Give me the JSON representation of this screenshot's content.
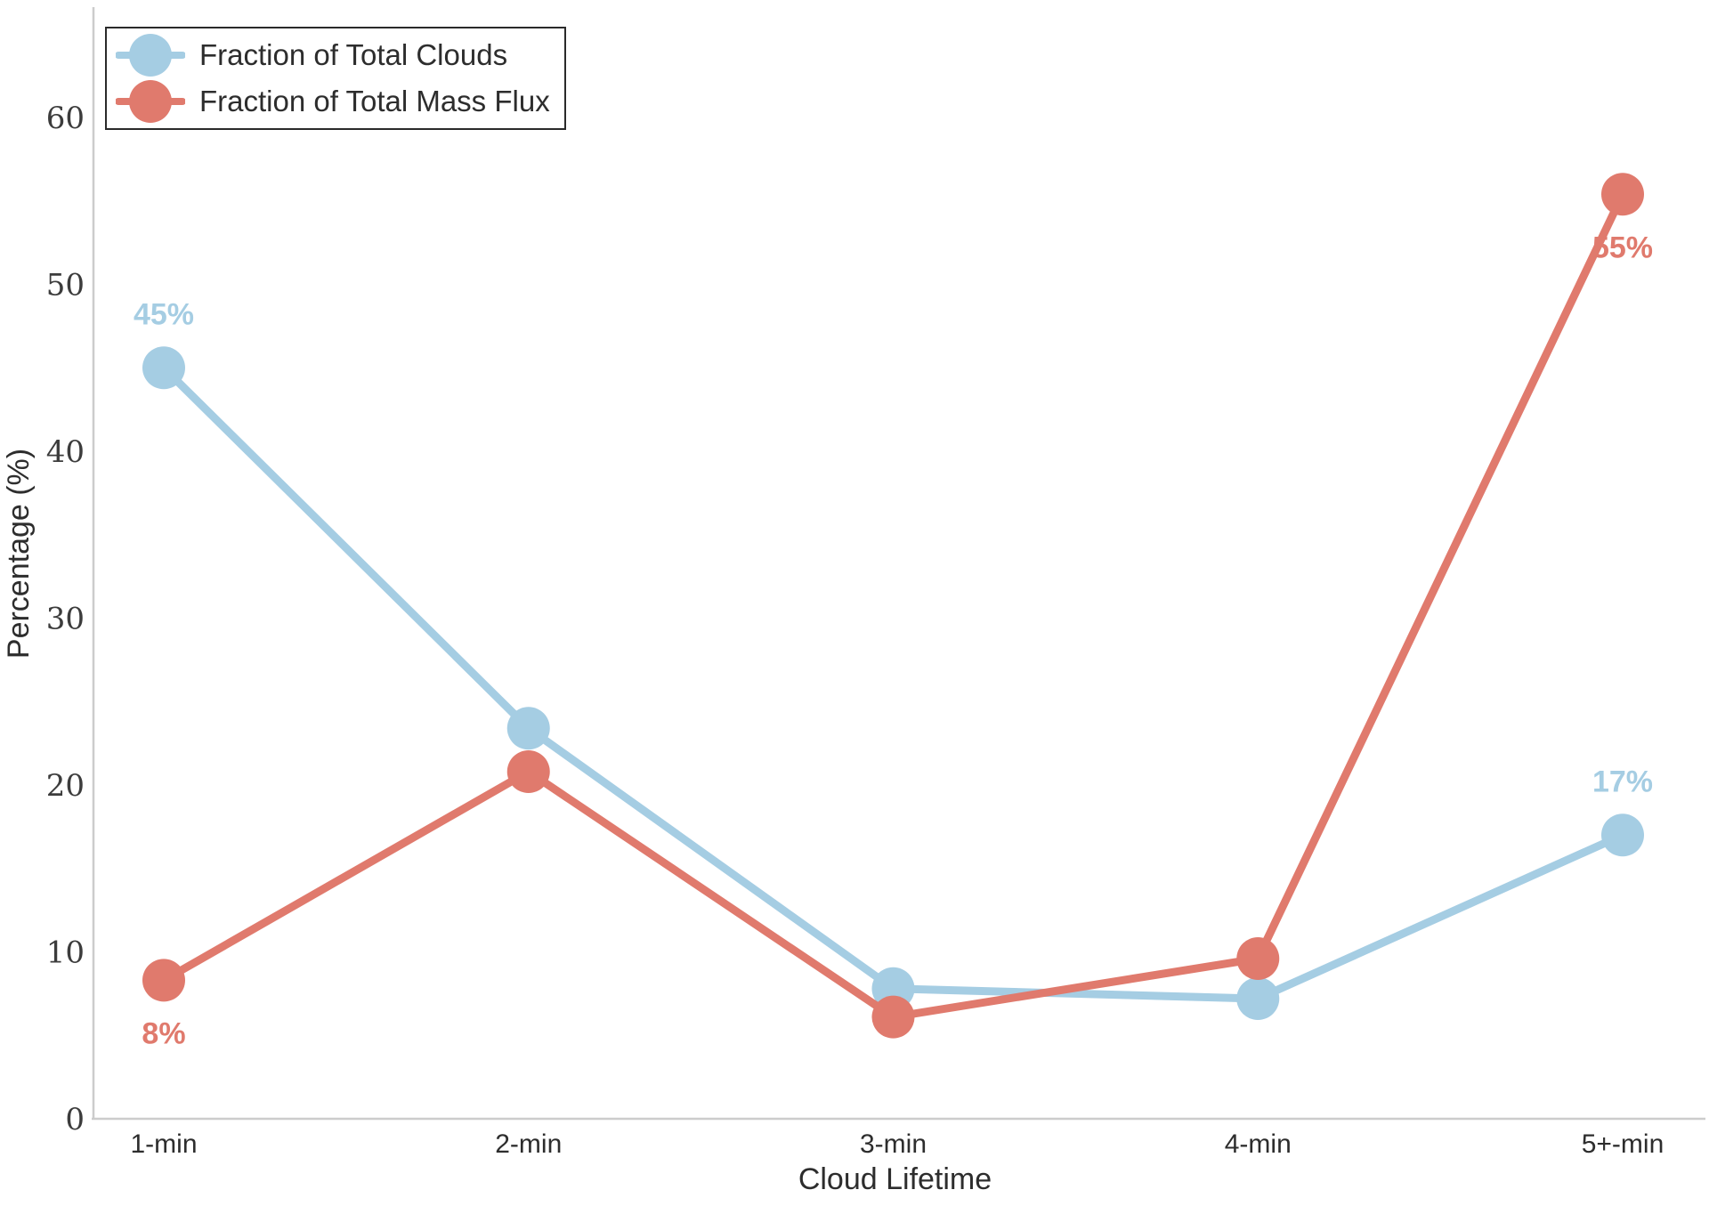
{
  "chart_data": {
    "type": "line",
    "title": "",
    "xlabel": "Cloud Lifetime",
    "ylabel": "Percentage (%)",
    "categories": [
      "1-min",
      "2-min",
      "3-min",
      "4-min",
      "5+-min"
    ],
    "series": [
      {
        "name": "Fraction of Total Clouds",
        "color": "#a5cde3",
        "values": [
          45,
          23.4,
          7.8,
          7.2,
          17
        ]
      },
      {
        "name": "Fraction of Total Mass Flux",
        "color": "#e07a6d",
        "values": [
          8.3,
          20.8,
          6.1,
          9.6,
          55.4
        ]
      }
    ],
    "annotations": [
      {
        "series": 0,
        "index": 0,
        "text": "45%",
        "placement": "above"
      },
      {
        "series": 1,
        "index": 0,
        "text": "8%",
        "placement": "below"
      },
      {
        "series": 1,
        "index": 4,
        "text": "55%",
        "placement": "below"
      },
      {
        "series": 0,
        "index": 4,
        "text": "17%",
        "placement": "above"
      }
    ],
    "yticks": [
      0,
      10,
      20,
      30,
      40,
      50,
      60
    ],
    "ylim": [
      0,
      66.5
    ],
    "grid": false,
    "legend_position": "upper-left",
    "axis_color": "#cccccc",
    "tick_text_color": "#3c3c3c",
    "text_color": "#2d2d2d",
    "background_color": "#ffffff"
  }
}
